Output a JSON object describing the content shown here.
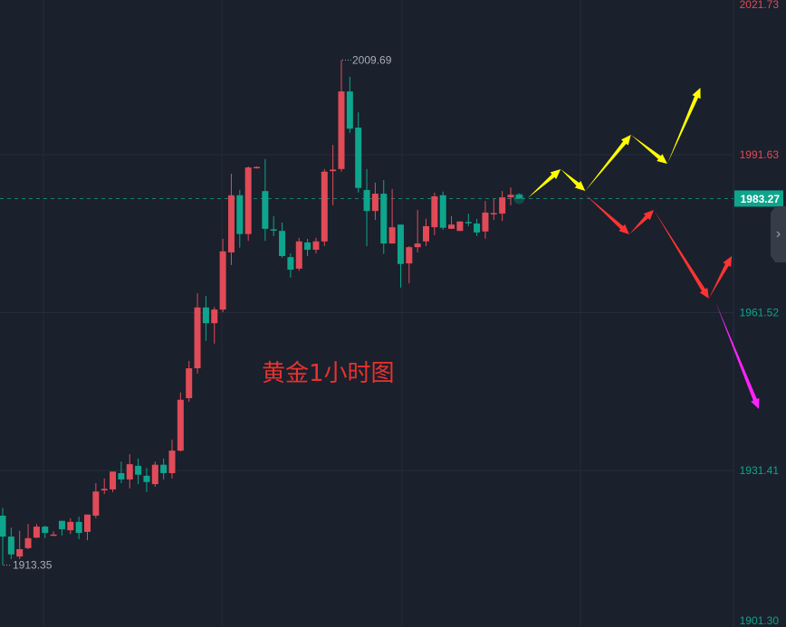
{
  "chart_data": {
    "type": "candlestick",
    "title": "黄金1小时图",
    "up_color": "#e04b57",
    "down_color": "#0ea58c",
    "background": "#1a202c",
    "grid": true,
    "y_ticks": [
      "2021.73",
      "1991.63",
      "1961.52",
      "1931.41",
      "1901.30"
    ],
    "ylim": [
      1901.3,
      2021.73
    ],
    "current_price": "1983.27",
    "high_label": "2009.69",
    "low_label": "1913.35",
    "candles": [
      [
        1922.8,
        1924.3,
        1913.35,
        1918.8
      ],
      [
        1918.8,
        1920.5,
        1914.5,
        1915.4
      ],
      [
        1915.0,
        1919.9,
        1914.5,
        1916.4
      ],
      [
        1916.6,
        1921.2,
        1916.4,
        1918.5
      ],
      [
        1918.6,
        1921.2,
        1918.5,
        1920.7
      ],
      [
        1920.7,
        1920.9,
        1918.5,
        1919.5
      ],
      [
        1919.0,
        1919.8,
        1918.9,
        1919.2
      ],
      [
        1921.8,
        1921.8,
        1919.0,
        1920.2
      ],
      [
        1920.0,
        1922.3,
        1919.3,
        1921.6
      ],
      [
        1921.6,
        1922.6,
        1918.3,
        1919.5
      ],
      [
        1919.7,
        1923.0,
        1918.1,
        1923.0
      ],
      [
        1922.8,
        1929.0,
        1922.3,
        1927.4
      ],
      [
        1927.6,
        1929.9,
        1926.9,
        1927.9
      ],
      [
        1927.8,
        1931.2,
        1927.3,
        1931.2
      ],
      [
        1930.9,
        1933.1,
        1929.0,
        1929.7
      ],
      [
        1929.7,
        1934.5,
        1928.0,
        1932.6
      ],
      [
        1932.3,
        1933.7,
        1928.8,
        1930.6
      ],
      [
        1930.4,
        1931.9,
        1927.3,
        1929.2
      ],
      [
        1928.8,
        1933.1,
        1928.3,
        1932.5
      ],
      [
        1932.5,
        1933.7,
        1929.7,
        1930.9
      ],
      [
        1930.9,
        1937.3,
        1929.9,
        1935.2
      ],
      [
        1935.2,
        1946.3,
        1935.0,
        1944.9
      ],
      [
        1945.2,
        1952.3,
        1944.5,
        1950.9
      ],
      [
        1950.9,
        1965.2,
        1949.9,
        1962.5
      ],
      [
        1962.5,
        1964.7,
        1956.1,
        1959.5
      ],
      [
        1959.5,
        1962.6,
        1955.6,
        1962.1
      ],
      [
        1962.1,
        1975.6,
        1961.6,
        1973.2
      ],
      [
        1973.0,
        1988.0,
        1970.6,
        1983.9
      ],
      [
        1983.9,
        1984.9,
        1973.9,
        1976.5
      ],
      [
        1976.5,
        1989.4,
        1975.2,
        1989.2
      ],
      [
        1989.1,
        1989.4,
        1989.0,
        1989.3
      ],
      [
        1984.7,
        1990.8,
        1975.2,
        1977.5
      ],
      [
        1977.4,
        1979.9,
        1976.1,
        1977.2
      ],
      [
        1977.1,
        1978.7,
        1972.0,
        1972.3
      ],
      [
        1972.1,
        1972.8,
        1968.2,
        1969.7
      ],
      [
        1969.9,
        1975.8,
        1969.5,
        1975.1
      ],
      [
        1974.9,
        1975.6,
        1972.3,
        1973.5
      ],
      [
        1973.5,
        1975.8,
        1972.8,
        1975.1
      ],
      [
        1975.1,
        1988.9,
        1974.2,
        1988.4
      ],
      [
        1988.5,
        1993.5,
        1982.0,
        1988.8
      ],
      [
        1988.9,
        2009.69,
        1988.4,
        2003.7
      ],
      [
        2003.7,
        2006.5,
        1995.8,
        1996.6
      ],
      [
        1996.8,
        1999.7,
        1984.4,
        1985.3
      ],
      [
        1984.9,
        1988.9,
        1974.2,
        1980.9
      ],
      [
        1980.9,
        1986.3,
        1979.2,
        1984.2
      ],
      [
        1984.2,
        1986.8,
        1972.7,
        1974.7
      ],
      [
        1974.7,
        1985.1,
        1974.7,
        1977.8
      ],
      [
        1978.3,
        1978.3,
        1966.3,
        1970.8
      ],
      [
        1970.9,
        1974.2,
        1967.1,
        1974.0
      ],
      [
        1974.0,
        1981.1,
        1973.0,
        1974.7
      ],
      [
        1975.1,
        1979.4,
        1974.2,
        1978.0
      ],
      [
        1977.8,
        1984.4,
        1976.3,
        1983.7
      ],
      [
        1983.9,
        1984.6,
        1977.3,
        1977.7
      ],
      [
        1977.5,
        1979.9,
        1977.5,
        1978.3
      ],
      [
        1977.1,
        1978.9,
        1977.1,
        1978.9
      ],
      [
        1978.8,
        1980.4,
        1978.0,
        1978.6
      ],
      [
        1978.5,
        1979.4,
        1976.1,
        1976.8
      ],
      [
        1977.0,
        1982.8,
        1975.6,
        1980.6
      ],
      [
        1980.3,
        1983.2,
        1979.2,
        1980.5
      ],
      [
        1980.4,
        1984.7,
        1979.0,
        1983.5
      ],
      [
        1983.5,
        1985.4,
        1982.0,
        1984.0
      ],
      [
        1984.0,
        1984.2,
        1983.2,
        1983.27
      ]
    ],
    "annotations": [
      {
        "color": "#ffff00",
        "points": [
          [
            62.0,
            1983.35
          ],
          [
            65.9,
            1988.87
          ],
          [
            68.8,
            1984.73
          ],
          [
            74.2,
            1995.43
          ],
          [
            78.5,
            1989.91
          ],
          [
            82.4,
            2004.4
          ]
        ]
      },
      {
        "color": "#ff3333",
        "points": [
          [
            68.8,
            1984.04
          ],
          [
            74.0,
            1976.45
          ],
          [
            76.9,
            1981.11
          ],
          [
            83.4,
            1964.19
          ],
          [
            86.1,
            1972.31
          ]
        ]
      },
      {
        "color": "#ff22ff",
        "points": [
          [
            84.2,
            1963.5
          ],
          [
            89.3,
            1943.14
          ]
        ]
      }
    ]
  },
  "ui": {
    "collapse_icon": "chevron-right-icon",
    "collapse_glyph": "›"
  }
}
